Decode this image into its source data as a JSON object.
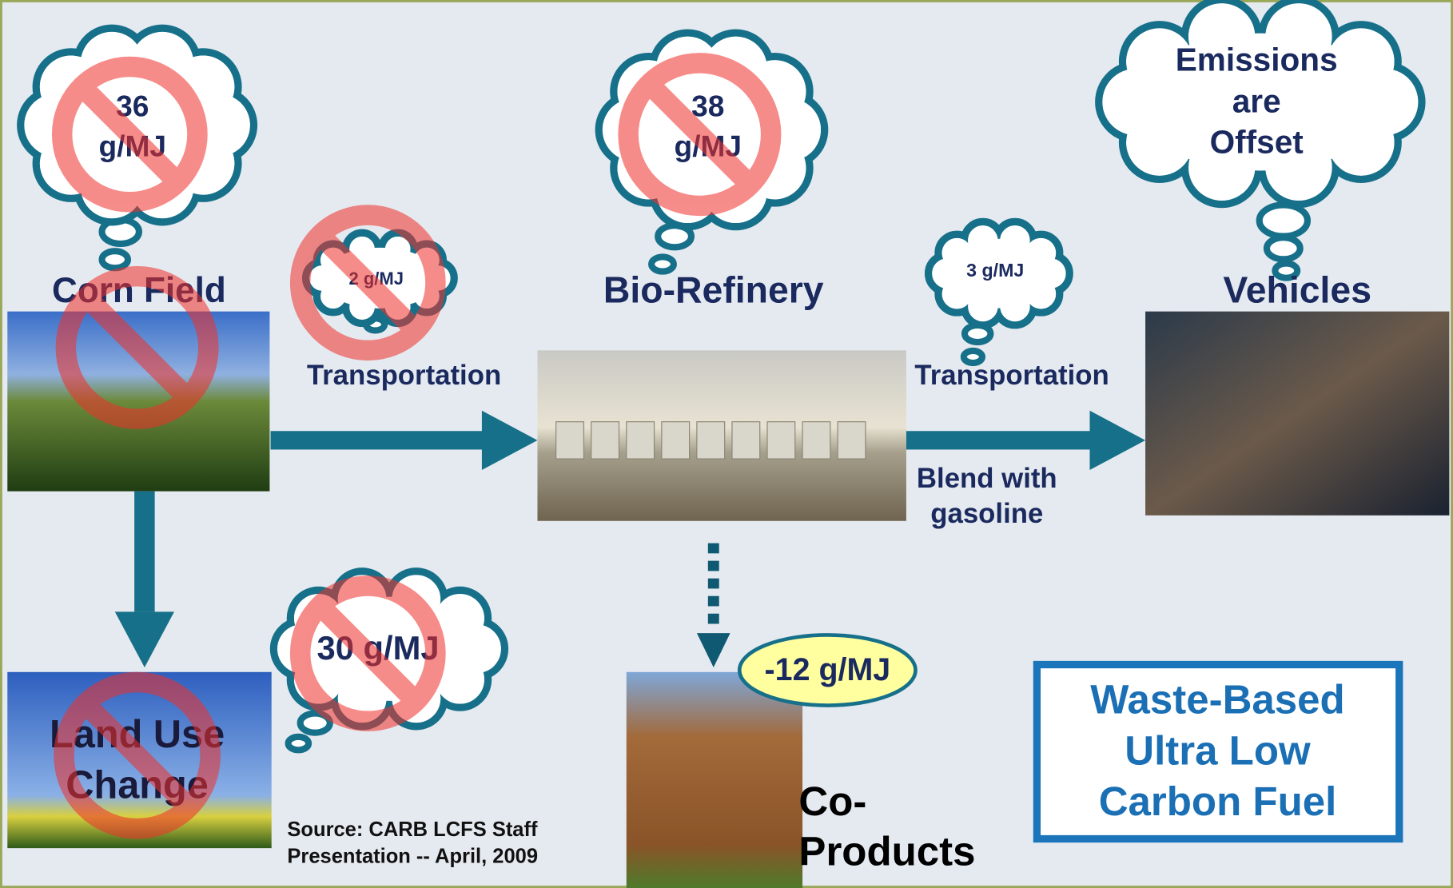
{
  "nodes": [
    {
      "label": "Corn Field"
    },
    {
      "label": "Bio-Refinery"
    },
    {
      "label": "Vehicles"
    },
    {
      "lines": [
        "Land Use",
        "Change"
      ]
    },
    {
      "lines": [
        "Co-",
        "Products"
      ]
    }
  ],
  "clouds": [
    {
      "lines": [
        "36",
        "g/MJ"
      ]
    },
    {
      "lines": [
        "2 g/MJ"
      ]
    },
    {
      "lines": [
        "38",
        "g/MJ"
      ]
    },
    {
      "lines": [
        "3 g/MJ"
      ]
    },
    {
      "lines": [
        "Emissions",
        "are",
        "Offset"
      ]
    },
    {
      "lines": [
        "30 g/MJ"
      ]
    }
  ],
  "edges": [
    {
      "lines": [
        "Transportation"
      ]
    },
    {
      "lines": [
        "Transportation"
      ]
    },
    {
      "lines": [
        "Blend with",
        "gasoline"
      ]
    }
  ],
  "coproduct_credit": "-12 g/MJ",
  "callout": {
    "lines": [
      "Waste-Based",
      "Ultra Low",
      "Carbon Fuel"
    ]
  },
  "source": {
    "lines": [
      "Source:  CARB LCFS Staff",
      "Presentation -- April, 2009"
    ]
  }
}
